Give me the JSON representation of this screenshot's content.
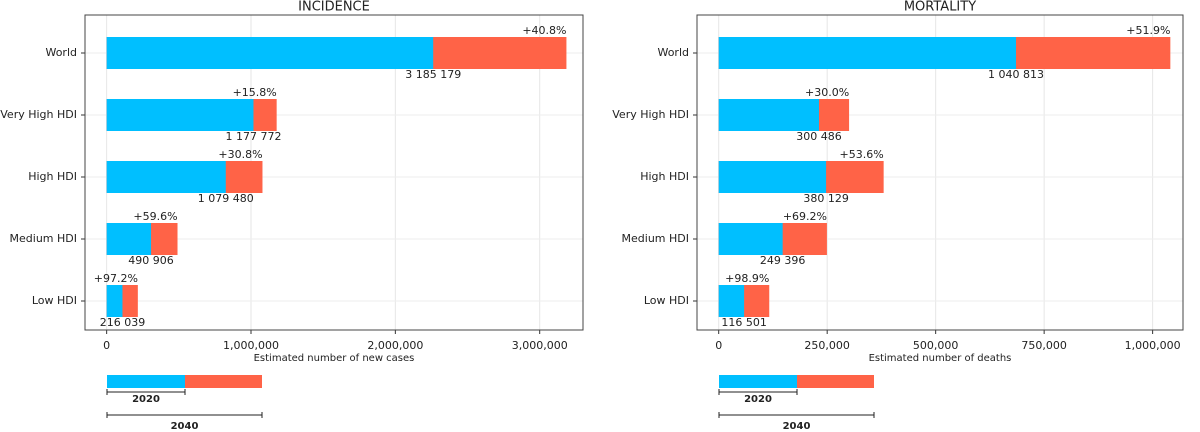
{
  "chart_data": [
    {
      "type": "bar",
      "title": "INCIDENCE",
      "x_label": "Estimated number of new cases",
      "categories": [
        "World",
        "Very High HDI",
        "High HDI",
        "Medium HDI",
        "Low HDI"
      ],
      "series": [
        {
          "name": "2040",
          "color": "#ff6347",
          "values": [
            3185179,
            1177772,
            1079480,
            490906,
            216039
          ],
          "value_labels": [
            "3 185 179",
            "1 177 772",
            "1 079 480",
            "490 906",
            "216 039"
          ]
        },
        {
          "name": "2020",
          "color": "#00bfff",
          "values": [
            2262201,
            1017075,
            825291,
            307585,
            109553
          ]
        }
      ],
      "change": {
        "values": [
          40.8,
          15.8,
          30.8,
          59.6,
          97.2
        ],
        "value_labels": [
          "+40.8%",
          "+15.8%",
          "+30.8%",
          "+59.6%",
          "+97.2%"
        ]
      },
      "xlim": [
        -150000,
        3300000
      ],
      "xticks": [
        0,
        {
          "value": 1000000,
          "label": "1,000,000"
        },
        {
          "value": 2000000,
          "label": "2,000,000"
        },
        {
          "value": 3000000,
          "label": "3,000,000"
        }
      ],
      "grid": true
    },
    {
      "type": "bar",
      "title": "MORTALITY",
      "x_label": "Estimated number of deaths",
      "categories": [
        "World",
        "Very High HDI",
        "High HDI",
        "Medium HDI",
        "Low HDI"
      ],
      "series": [
        {
          "name": "2040",
          "color": "#ff6347",
          "values": [
            1040813,
            300486,
            380129,
            249396,
            116501
          ],
          "value_labels": [
            "1 040 813",
            "300 486",
            "380 129",
            "249 396",
            "116 501"
          ]
        },
        {
          "name": "2020",
          "color": "#00bfff",
          "values": [
            685196,
            231143,
            247480,
            147397,
            58573
          ]
        }
      ],
      "change": {
        "values": [
          51.9,
          30.0,
          53.6,
          69.2,
          98.9
        ],
        "value_labels": [
          "+51.9%",
          "+30.0%",
          "+53.6%",
          "+69.2%",
          "+98.9%"
        ]
      },
      "xlim": [
        -50000,
        1070000
      ],
      "xticks": [
        0,
        {
          "value": 250000,
          "label": "250,000"
        },
        {
          "value": 500000,
          "label": "500,000"
        },
        {
          "value": 750000,
          "label": "750,000"
        },
        {
          "value": 1000000,
          "label": "1,000,000"
        }
      ],
      "grid": true
    }
  ]
}
